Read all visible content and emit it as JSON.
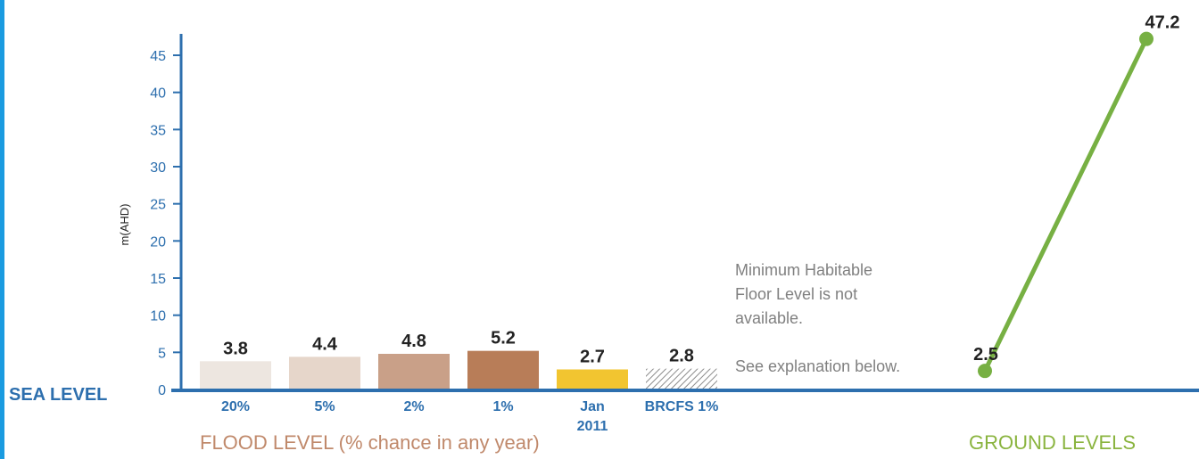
{
  "chart_data": {
    "type": "bar",
    "ylabel": "m(AHD)",
    "ylim": [
      0,
      48
    ],
    "yticks": [
      0,
      5,
      10,
      15,
      20,
      25,
      30,
      35,
      40,
      45
    ],
    "baseline_label": "SEA LEVEL",
    "categories": [
      "20%",
      "5%",
      "2%",
      "1%",
      "Jan 2011",
      "BRCFS 1%"
    ],
    "values": [
      3.8,
      4.4,
      4.8,
      5.2,
      2.7,
      2.8
    ],
    "value_labels": [
      "3.8",
      "4.4",
      "4.8",
      "5.2",
      "2.7",
      "2.8"
    ],
    "colors": [
      "#ede6e0",
      "#e6d6ca",
      "#c9a088",
      "#b87d58",
      "#f2c530",
      "hatched"
    ],
    "flood_axis_label": "FLOOD LEVEL (% chance in any year)",
    "note": [
      "Minimum Habitable",
      "Floor Level is not",
      "available.",
      "See explanation below."
    ],
    "ground_levels": {
      "type": "line",
      "values": [
        2.5,
        47.2
      ],
      "value_labels": [
        "2.5",
        "47.2"
      ],
      "color": "#77b043",
      "label": "GROUND LEVELS"
    }
  }
}
